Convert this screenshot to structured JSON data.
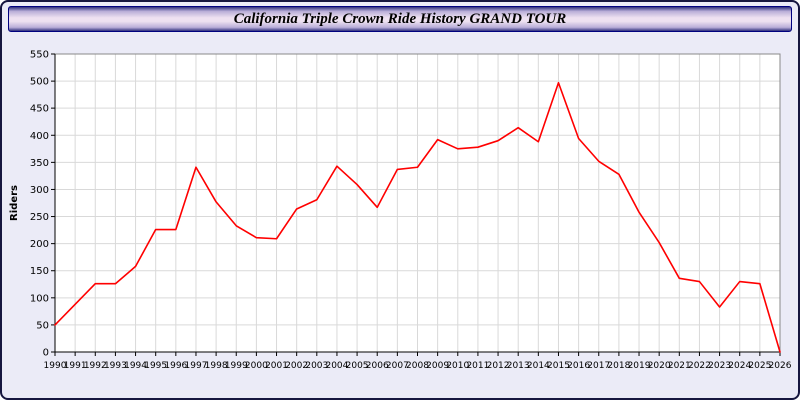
{
  "page": {
    "title": "California Triple Crown Ride History GRAND TOUR"
  },
  "colors": {
    "page_background": "#ebebf7",
    "plot_background": "#ffffff",
    "gridline": "#d9d9d9",
    "line": "#ff0000",
    "axis": "#000000",
    "frame": "#888888"
  },
  "chart_data": {
    "type": "line",
    "title": "California Triple Crown Ride History GRAND TOUR",
    "xlabel": "",
    "ylabel": "Riders",
    "ylim": [
      0,
      550
    ],
    "ytick_step": 50,
    "grid": true,
    "legend": "none",
    "x": [
      1990,
      1991,
      1992,
      1993,
      1994,
      1995,
      1996,
      1997,
      1998,
      1999,
      2000,
      2001,
      2002,
      2003,
      2004,
      2005,
      2006,
      2007,
      2008,
      2009,
      2010,
      2011,
      2012,
      2013,
      2014,
      2015,
      2016,
      2017,
      2018,
      2019,
      2020,
      2021,
      2022,
      2023,
      2024,
      2025,
      2026
    ],
    "series": [
      {
        "name": "Riders",
        "color": "#ff0000",
        "values": [
          50,
          88,
          126,
          126,
          158,
          226,
          226,
          341,
          277,
          233,
          211,
          209,
          264,
          281,
          343,
          309,
          267,
          337,
          341,
          392,
          375,
          378,
          390,
          414,
          388,
          497,
          394,
          352,
          328,
          258,
          202,
          136,
          130,
          83,
          130,
          126,
          0
        ]
      }
    ]
  }
}
